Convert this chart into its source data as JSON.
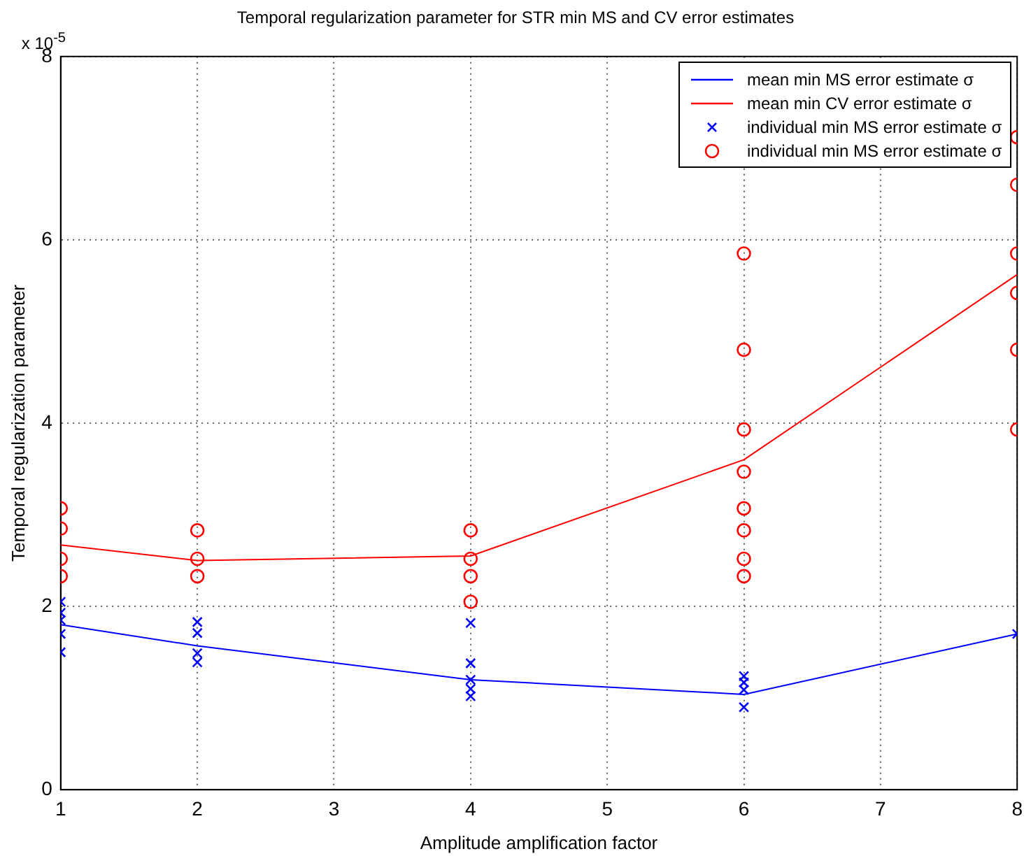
{
  "chart_data": {
    "type": "scatter",
    "title": "Temporal regularization parameter for STR min MS and CV error estimates",
    "xlabel": "Amplitude amplification factor",
    "ylabel": "Temporal regularization parameter",
    "annotations": [
      "x 10$^{-5}$"
    ],
    "xlim": [
      1,
      8
    ],
    "xticks": [
      1,
      2,
      3,
      4,
      5,
      6,
      7,
      8
    ],
    "ylim": [
      0,
      8
    ],
    "yticks": [
      0,
      2,
      4,
      6,
      8
    ],
    "grid": true,
    "legend": "top right",
    "series": [
      {
        "name": "mean min MS error estimate σ",
        "type": "line",
        "color": "#0000ff",
        "marker": "none",
        "line_style": "solid",
        "x": [
          1,
          2,
          4,
          6,
          8
        ],
        "values": [
          1.8,
          1.57,
          1.2,
          1.04,
          1.7
        ]
      },
      {
        "name": "mean min CV error estimate σ",
        "type": "line",
        "color": "#ff0000",
        "marker": "none",
        "line_style": "solid",
        "x": [
          1,
          2,
          4,
          6,
          8
        ],
        "values": [
          2.67,
          2.5,
          2.55,
          3.6,
          5.62
        ]
      },
      {
        "name": "individual min MS error estimate σ",
        "type": "scatter",
        "color": "#0000ff",
        "marker": "cross",
        "x": [
          1,
          1,
          1,
          1,
          1,
          2,
          2,
          2,
          2,
          4,
          4,
          4,
          4,
          4,
          6,
          6,
          6,
          6,
          8
        ],
        "values": [
          2.05,
          1.93,
          1.85,
          1.7,
          1.5,
          1.83,
          1.71,
          1.49,
          1.39,
          1.82,
          1.38,
          1.2,
          1.1,
          1.02,
          1.24,
          1.17,
          1.09,
          0.9,
          1.7
        ]
      },
      {
        "name": "individual min MS error estimate σ",
        "type": "scatter",
        "color": "#ff0000",
        "marker": "circle",
        "x": [
          1,
          1,
          1,
          1,
          2,
          2,
          2,
          4,
          4,
          4,
          4,
          6,
          6,
          6,
          6,
          6,
          6,
          6,
          6,
          8,
          8,
          8,
          8,
          8,
          8
        ],
        "values": [
          3.07,
          2.85,
          2.52,
          2.33,
          2.83,
          2.52,
          2.33,
          2.83,
          2.52,
          2.33,
          2.05,
          5.85,
          4.8,
          3.93,
          3.47,
          3.07,
          2.83,
          2.52,
          2.33,
          7.12,
          6.6,
          5.85,
          5.42,
          4.8,
          3.93
        ]
      }
    ]
  }
}
